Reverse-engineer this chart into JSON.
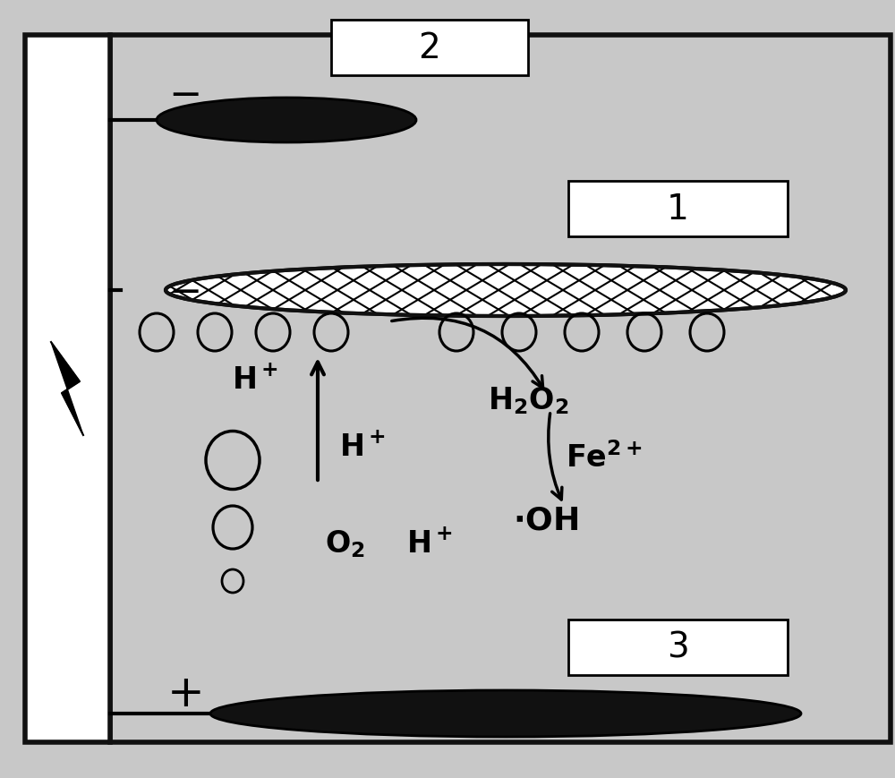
{
  "bg_color": "#c8c8c8",
  "white_color": "#ffffff",
  "black_color": "#111111",
  "label_1": "1",
  "label_2": "2",
  "label_3": "3",
  "font_size_label": 28,
  "font_size_chem": 22,
  "font_size_sign": 32,
  "fig_w": 10.0,
  "fig_h": 8.7,
  "dpi": 100
}
